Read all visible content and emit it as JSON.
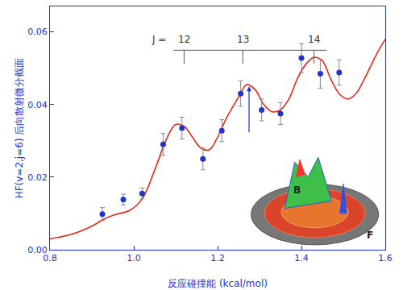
{
  "chart_data": {
    "type": "scatter",
    "x_label": "反应碰撞能 (kcal/mol)",
    "y_label": "HF(v=2,j=6) 后向散射微分截面",
    "xlim": [
      0.8,
      1.6
    ],
    "xticks": [
      {
        "value": 0.8,
        "label": "0.8"
      },
      {
        "value": 1.0,
        "label": "1.0"
      },
      {
        "value": 1.2,
        "label": "1.2"
      },
      {
        "value": 1.4,
        "label": "1.4"
      },
      {
        "value": 1.6,
        "label": "1.6"
      }
    ],
    "ylim": [
      0,
      0.067
    ],
    "yticks": [
      {
        "value": 0,
        "label": "0.00"
      },
      {
        "value": 0.02,
        "label": "0.02"
      },
      {
        "value": 0.04,
        "label": "0.04"
      },
      {
        "value": 0.06,
        "label": "0.06"
      }
    ],
    "grid": false,
    "points": {
      "type": "scatter",
      "marker": "circle",
      "color": "#2233cc",
      "x": [
        0.925,
        0.975,
        1.02,
        1.07,
        1.115,
        1.165,
        1.21,
        1.255,
        1.305,
        1.35,
        1.4,
        1.445,
        1.49
      ],
      "values": [
        0.0098,
        0.0138,
        0.0155,
        0.029,
        0.0335,
        0.025,
        0.0328,
        0.043,
        0.0385,
        0.0375,
        0.0528,
        0.0485,
        0.0488
      ],
      "errors": [
        0.0018,
        0.0015,
        0.0015,
        0.003,
        0.003,
        0.003,
        0.003,
        0.0035,
        0.003,
        0.003,
        0.004,
        0.004,
        0.0035
      ]
    },
    "curve": {
      "type": "line",
      "line_style": "solid",
      "color": "#e02a1a",
      "x": [
        0.8,
        0.85,
        0.9,
        0.93,
        0.96,
        0.99,
        1.02,
        1.05,
        1.08,
        1.1,
        1.12,
        1.14,
        1.16,
        1.18,
        1.2,
        1.22,
        1.25,
        1.27,
        1.29,
        1.31,
        1.33,
        1.35,
        1.37,
        1.39,
        1.41,
        1.43,
        1.45,
        1.47,
        1.49,
        1.51,
        1.53,
        1.55,
        1.58,
        1.6
      ],
      "values": [
        0.003,
        0.0042,
        0.0065,
        0.0085,
        0.0098,
        0.0108,
        0.014,
        0.022,
        0.031,
        0.0345,
        0.034,
        0.031,
        0.028,
        0.0275,
        0.031,
        0.036,
        0.042,
        0.0455,
        0.044,
        0.04,
        0.038,
        0.0385,
        0.0415,
        0.047,
        0.051,
        0.053,
        0.052,
        0.047,
        0.043,
        0.0415,
        0.043,
        0.047,
        0.054,
        0.058
      ]
    },
    "j_label": "J =",
    "j_levels": [
      {
        "x": 1.12,
        "label": "12"
      },
      {
        "x": 1.26,
        "label": "13"
      },
      {
        "x": 1.43,
        "label": "14"
      }
    ],
    "arrow": {
      "x": 1.275,
      "y_from": 0.032,
      "y_to": 0.045
    },
    "annotations": [
      {
        "text": "B",
        "x": 1.389,
        "y": 0.0164
      },
      {
        "text": "F",
        "x": 1.563,
        "y": 0.0041
      }
    ]
  }
}
